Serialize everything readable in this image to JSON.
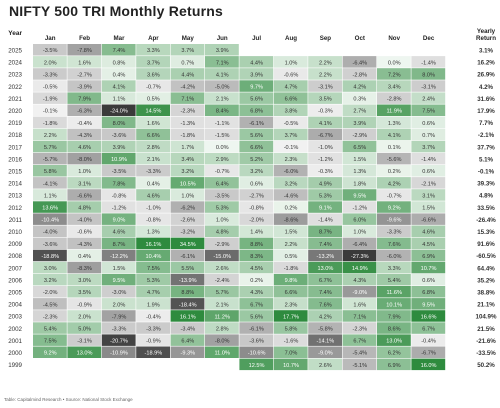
{
  "chart_data": {
    "type": "heatmap",
    "title": "NIFTY 500 TRI Monthly Returns",
    "row_header": "Year",
    "columns": [
      "Jan",
      "Feb",
      "Mar",
      "Apr",
      "May",
      "Jun",
      "Jul",
      "Aug",
      "Sep",
      "Oct",
      "Nov",
      "Dec"
    ],
    "total_header": "Yearly Return",
    "unit": "%",
    "rows": [
      {
        "year": "2025",
        "values": [
          -3.5,
          -7.8,
          7.4,
          3.3,
          3.7,
          3.9,
          null,
          null,
          null,
          null,
          null,
          null
        ],
        "yearly": 3.1
      },
      {
        "year": "2024",
        "values": [
          2.0,
          1.6,
          0.8,
          3.7,
          0.7,
          7.1,
          4.4,
          1.0,
          2.2,
          -6.4,
          0.0,
          -1.4
        ],
        "yearly": 16.2
      },
      {
        "year": "2023",
        "values": [
          -3.3,
          -2.7,
          0.4,
          3.6,
          4.4,
          4.1,
          3.9,
          -0.6,
          2.2,
          -2.8,
          7.2,
          8.0
        ],
        "yearly": 26.9
      },
      {
        "year": "2022",
        "values": [
          -0.5,
          -3.9,
          4.1,
          -0.7,
          -4.2,
          -5.0,
          9.7,
          4.7,
          -3.1,
          4.2,
          3.4,
          -3.1
        ],
        "yearly": 4.2
      },
      {
        "year": "2021",
        "values": [
          -1.9,
          7.9,
          1.1,
          0.5,
          7.1,
          2.1,
          5.6,
          6.6,
          3.5,
          0.3,
          -2.8,
          2.4
        ],
        "yearly": 31.6
      },
      {
        "year": "2020",
        "values": [
          -0.1,
          -6.3,
          -24.0,
          14.5,
          -2.3,
          8.4,
          6.8,
          3.8,
          -0.3,
          2.7,
          11.9,
          7.5
        ],
        "yearly": 17.9
      },
      {
        "year": "2019",
        "values": [
          -1.8,
          -0.4,
          8.0,
          1.6,
          -1.3,
          -1.1,
          -6.1,
          -0.5,
          4.1,
          3.9,
          1.3,
          0.6
        ],
        "yearly": 7.7
      },
      {
        "year": "2018",
        "values": [
          2.2,
          -4.3,
          -3.6,
          6.6,
          -1.8,
          -1.5,
          5.6,
          3.7,
          -6.7,
          -2.9,
          4.1,
          0.7
        ],
        "yearly": -2.1
      },
      {
        "year": "2017",
        "values": [
          5.7,
          4.6,
          3.9,
          2.8,
          1.7,
          0.0,
          6.6,
          -0.1,
          -1.0,
          6.5,
          0.1,
          3.7
        ],
        "yearly": 37.7
      },
      {
        "year": "2016",
        "values": [
          -5.7,
          -8.0,
          10.9,
          2.1,
          3.4,
          2.9,
          5.2,
          2.3,
          -1.2,
          1.5,
          -5.6,
          -1.4
        ],
        "yearly": 5.1
      },
      {
        "year": "2015",
        "values": [
          5.8,
          1.0,
          -3.5,
          -3.3,
          3.2,
          -0.7,
          3.2,
          -6.0,
          -0.3,
          1.3,
          0.2,
          0.6
        ],
        "yearly": -0.1
      },
      {
        "year": "2014",
        "values": [
          -4.1,
          3.1,
          7.8,
          0.4,
          10.5,
          6.4,
          0.6,
          3.2,
          4.9,
          1.8,
          4.2,
          -2.1
        ],
        "yearly": 39.3
      },
      {
        "year": "2013",
        "values": [
          1.1,
          -6.6,
          -0.8,
          4.6,
          1.0,
          -3.5,
          -2.7,
          -4.6,
          5.3,
          9.5,
          -0.7,
          3.1
        ],
        "yearly": 4.8
      },
      {
        "year": "2012",
        "values": [
          13.6,
          4.8,
          -1.2,
          -1.0,
          -6.2,
          5.3,
          -0.8,
          0.2,
          9.1,
          -1.2,
          9.2,
          1.5
        ],
        "yearly": 33.5
      },
      {
        "year": "2011",
        "values": [
          -10.4,
          -4.0,
          9.0,
          -0.8,
          -2.6,
          1.0,
          -2.0,
          -8.6,
          -1.4,
          6.0,
          -9.6,
          -6.6
        ],
        "yearly": -26.4
      },
      {
        "year": "2010",
        "values": [
          -4.0,
          -0.6,
          4.6,
          1.3,
          -3.2,
          4.8,
          1.4,
          1.5,
          8.7,
          1.0,
          -3.3,
          4.6
        ],
        "yearly": 15.3
      },
      {
        "year": "2009",
        "values": [
          -3.6,
          -4.3,
          8.7,
          16.1,
          34.5,
          -2.9,
          8.8,
          2.2,
          7.4,
          -6.4,
          7.6,
          4.5
        ],
        "yearly": 91.6
      },
      {
        "year": "2008",
        "values": [
          -18.8,
          0.4,
          -12.2,
          10.4,
          -6.1,
          -15.0,
          8.3,
          0.5,
          -13.2,
          -27.3,
          -6.0,
          6.9
        ],
        "yearly": -60.5
      },
      {
        "year": "2007",
        "values": [
          3.0,
          -8.3,
          1.5,
          7.5,
          5.5,
          2.6,
          4.5,
          -1.8,
          13.0,
          14.9,
          3.3,
          10.7
        ],
        "yearly": 64.4
      },
      {
        "year": "2006",
        "values": [
          3.2,
          3.0,
          9.5,
          5.3,
          -13.9,
          -2.4,
          0.2,
          9.8,
          6.7,
          4.3,
          5.4,
          0.6
        ],
        "yearly": 35.2
      },
      {
        "year": "2005",
        "values": [
          -2.0,
          3.5,
          -3.0,
          4.7,
          8.8,
          5.7,
          4.3,
          6.6,
          7.4,
          -9.0,
          11.6,
          6.8
        ],
        "yearly": 38.8
      },
      {
        "year": "2004",
        "values": [
          -4.5,
          -0.9,
          2.0,
          1.9,
          -18.4,
          2.1,
          6.7,
          2.3,
          7.6,
          1.6,
          10.1,
          9.5
        ],
        "yearly": 21.1
      },
      {
        "year": "2003",
        "values": [
          -2.3,
          2.0,
          -7.9,
          -0.4,
          16.1,
          11.2,
          5.6,
          17.7,
          4.2,
          7.1,
          7.9,
          16.6
        ],
        "yearly": 104.9
      },
      {
        "year": "2002",
        "values": [
          5.4,
          5.0,
          -3.3,
          -3.3,
          -3.4,
          2.8,
          -6.1,
          5.8,
          -5.8,
          -2.3,
          8.6,
          6.7
        ],
        "yearly": 21.5
      },
      {
        "year": "2001",
        "values": [
          7.5,
          -3.1,
          -20.7,
          -0.9,
          6.4,
          -8.0,
          -3.6,
          -1.6,
          -14.1,
          6.7,
          13.0,
          -0.4
        ],
        "yearly": -21.6
      },
      {
        "year": "2000",
        "values": [
          9.2,
          13.0,
          -10.9,
          -18.9,
          -9.3,
          11.0,
          -10.6,
          7.0,
          -9.0,
          -5.4,
          6.2,
          -6.7
        ],
        "yearly": -33.5
      },
      {
        "year": "1999",
        "values": [
          null,
          null,
          null,
          null,
          null,
          null,
          12.5,
          10.7,
          2.6,
          -5.1,
          6.9,
          16.0
        ],
        "yearly": 50.2
      }
    ]
  },
  "footer": "Table: Capitalmind Research • Source: National Stock Exchange",
  "colors": {
    "pos_max": "#2e8b3e",
    "neg_max": "#3a3a3a",
    "neutral": "#ffffff",
    "header_text": "#222222",
    "year_text": "#333333"
  }
}
